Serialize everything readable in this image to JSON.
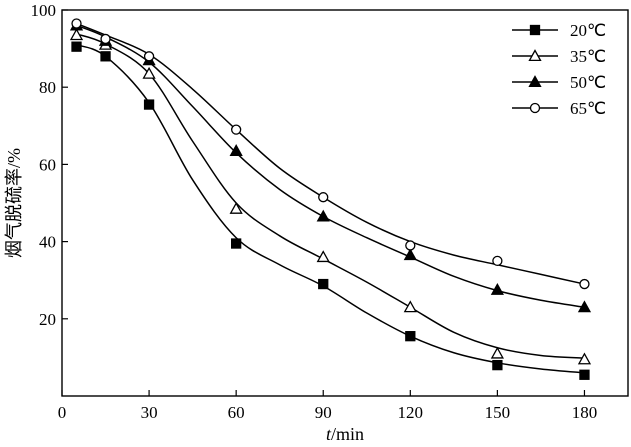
{
  "chart_data": {
    "type": "line",
    "title": "",
    "xlabel_italic": "t",
    "xlabel_rest": "/min",
    "ylabel": "烟气脱硫率/%",
    "xlim": [
      0,
      195
    ],
    "ylim": [
      0,
      100
    ],
    "x_ticks": [
      0,
      30,
      60,
      90,
      120,
      150,
      180
    ],
    "y_ticks": [
      20,
      40,
      60,
      80,
      100
    ],
    "x_tick_labels": [
      "0",
      "30",
      "60",
      "90",
      "120",
      "150",
      "180"
    ],
    "y_tick_labels": [
      "20",
      "40",
      "60",
      "80",
      "100"
    ],
    "legend_position": "top-right",
    "series": [
      {
        "name": "20℃",
        "marker": "square-filled",
        "x": [
          5,
          15,
          30,
          60,
          90,
          120,
          150,
          180
        ],
        "y": [
          90.5,
          88,
          75.5,
          39.5,
          29,
          15.5,
          8,
          5.5
        ],
        "fit_x": [
          5,
          15,
          30,
          45,
          60,
          75,
          90,
          105,
          120,
          135,
          150,
          165,
          180
        ],
        "fit_y": [
          91,
          88,
          76,
          56,
          41,
          34,
          28.5,
          21.5,
          15.5,
          11.2,
          8.6,
          7,
          6
        ]
      },
      {
        "name": "35℃",
        "marker": "triangle-open",
        "x": [
          5,
          15,
          30,
          60,
          90,
          120,
          150,
          180
        ],
        "y": [
          93.5,
          91,
          83.5,
          48.5,
          36,
          23,
          11,
          9.5
        ],
        "fit_x": [
          5,
          15,
          30,
          45,
          60,
          75,
          90,
          105,
          120,
          135,
          150,
          165,
          180
        ],
        "fit_y": [
          93.8,
          91.2,
          83.5,
          66,
          50,
          41.5,
          35.5,
          29.5,
          23,
          16.5,
          12.5,
          10.5,
          9.8
        ]
      },
      {
        "name": "50℃",
        "marker": "triangle-filled",
        "x": [
          5,
          15,
          30,
          60,
          90,
          120,
          150,
          180
        ],
        "y": [
          96,
          92,
          87,
          63.5,
          46.5,
          36.5,
          27.5,
          23
        ],
        "fit_x": [
          5,
          15,
          30,
          45,
          60,
          75,
          90,
          105,
          120,
          135,
          150,
          165,
          180
        ],
        "fit_y": [
          96,
          93,
          86.5,
          75,
          63,
          53.5,
          46.5,
          41,
          36,
          31,
          27.3,
          24.8,
          23
        ]
      },
      {
        "name": "65℃",
        "marker": "circle-open",
        "x": [
          5,
          15,
          30,
          60,
          90,
          120,
          150,
          180
        ],
        "y": [
          96.5,
          92.5,
          88,
          69,
          51.5,
          39,
          35,
          29
        ],
        "fit_x": [
          5,
          15,
          30,
          45,
          60,
          75,
          90,
          105,
          120,
          135,
          150,
          165,
          180
        ],
        "fit_y": [
          96.5,
          93.5,
          88.5,
          79.5,
          69,
          59,
          51.5,
          45,
          40,
          36.5,
          34,
          31.5,
          29
        ]
      }
    ]
  }
}
